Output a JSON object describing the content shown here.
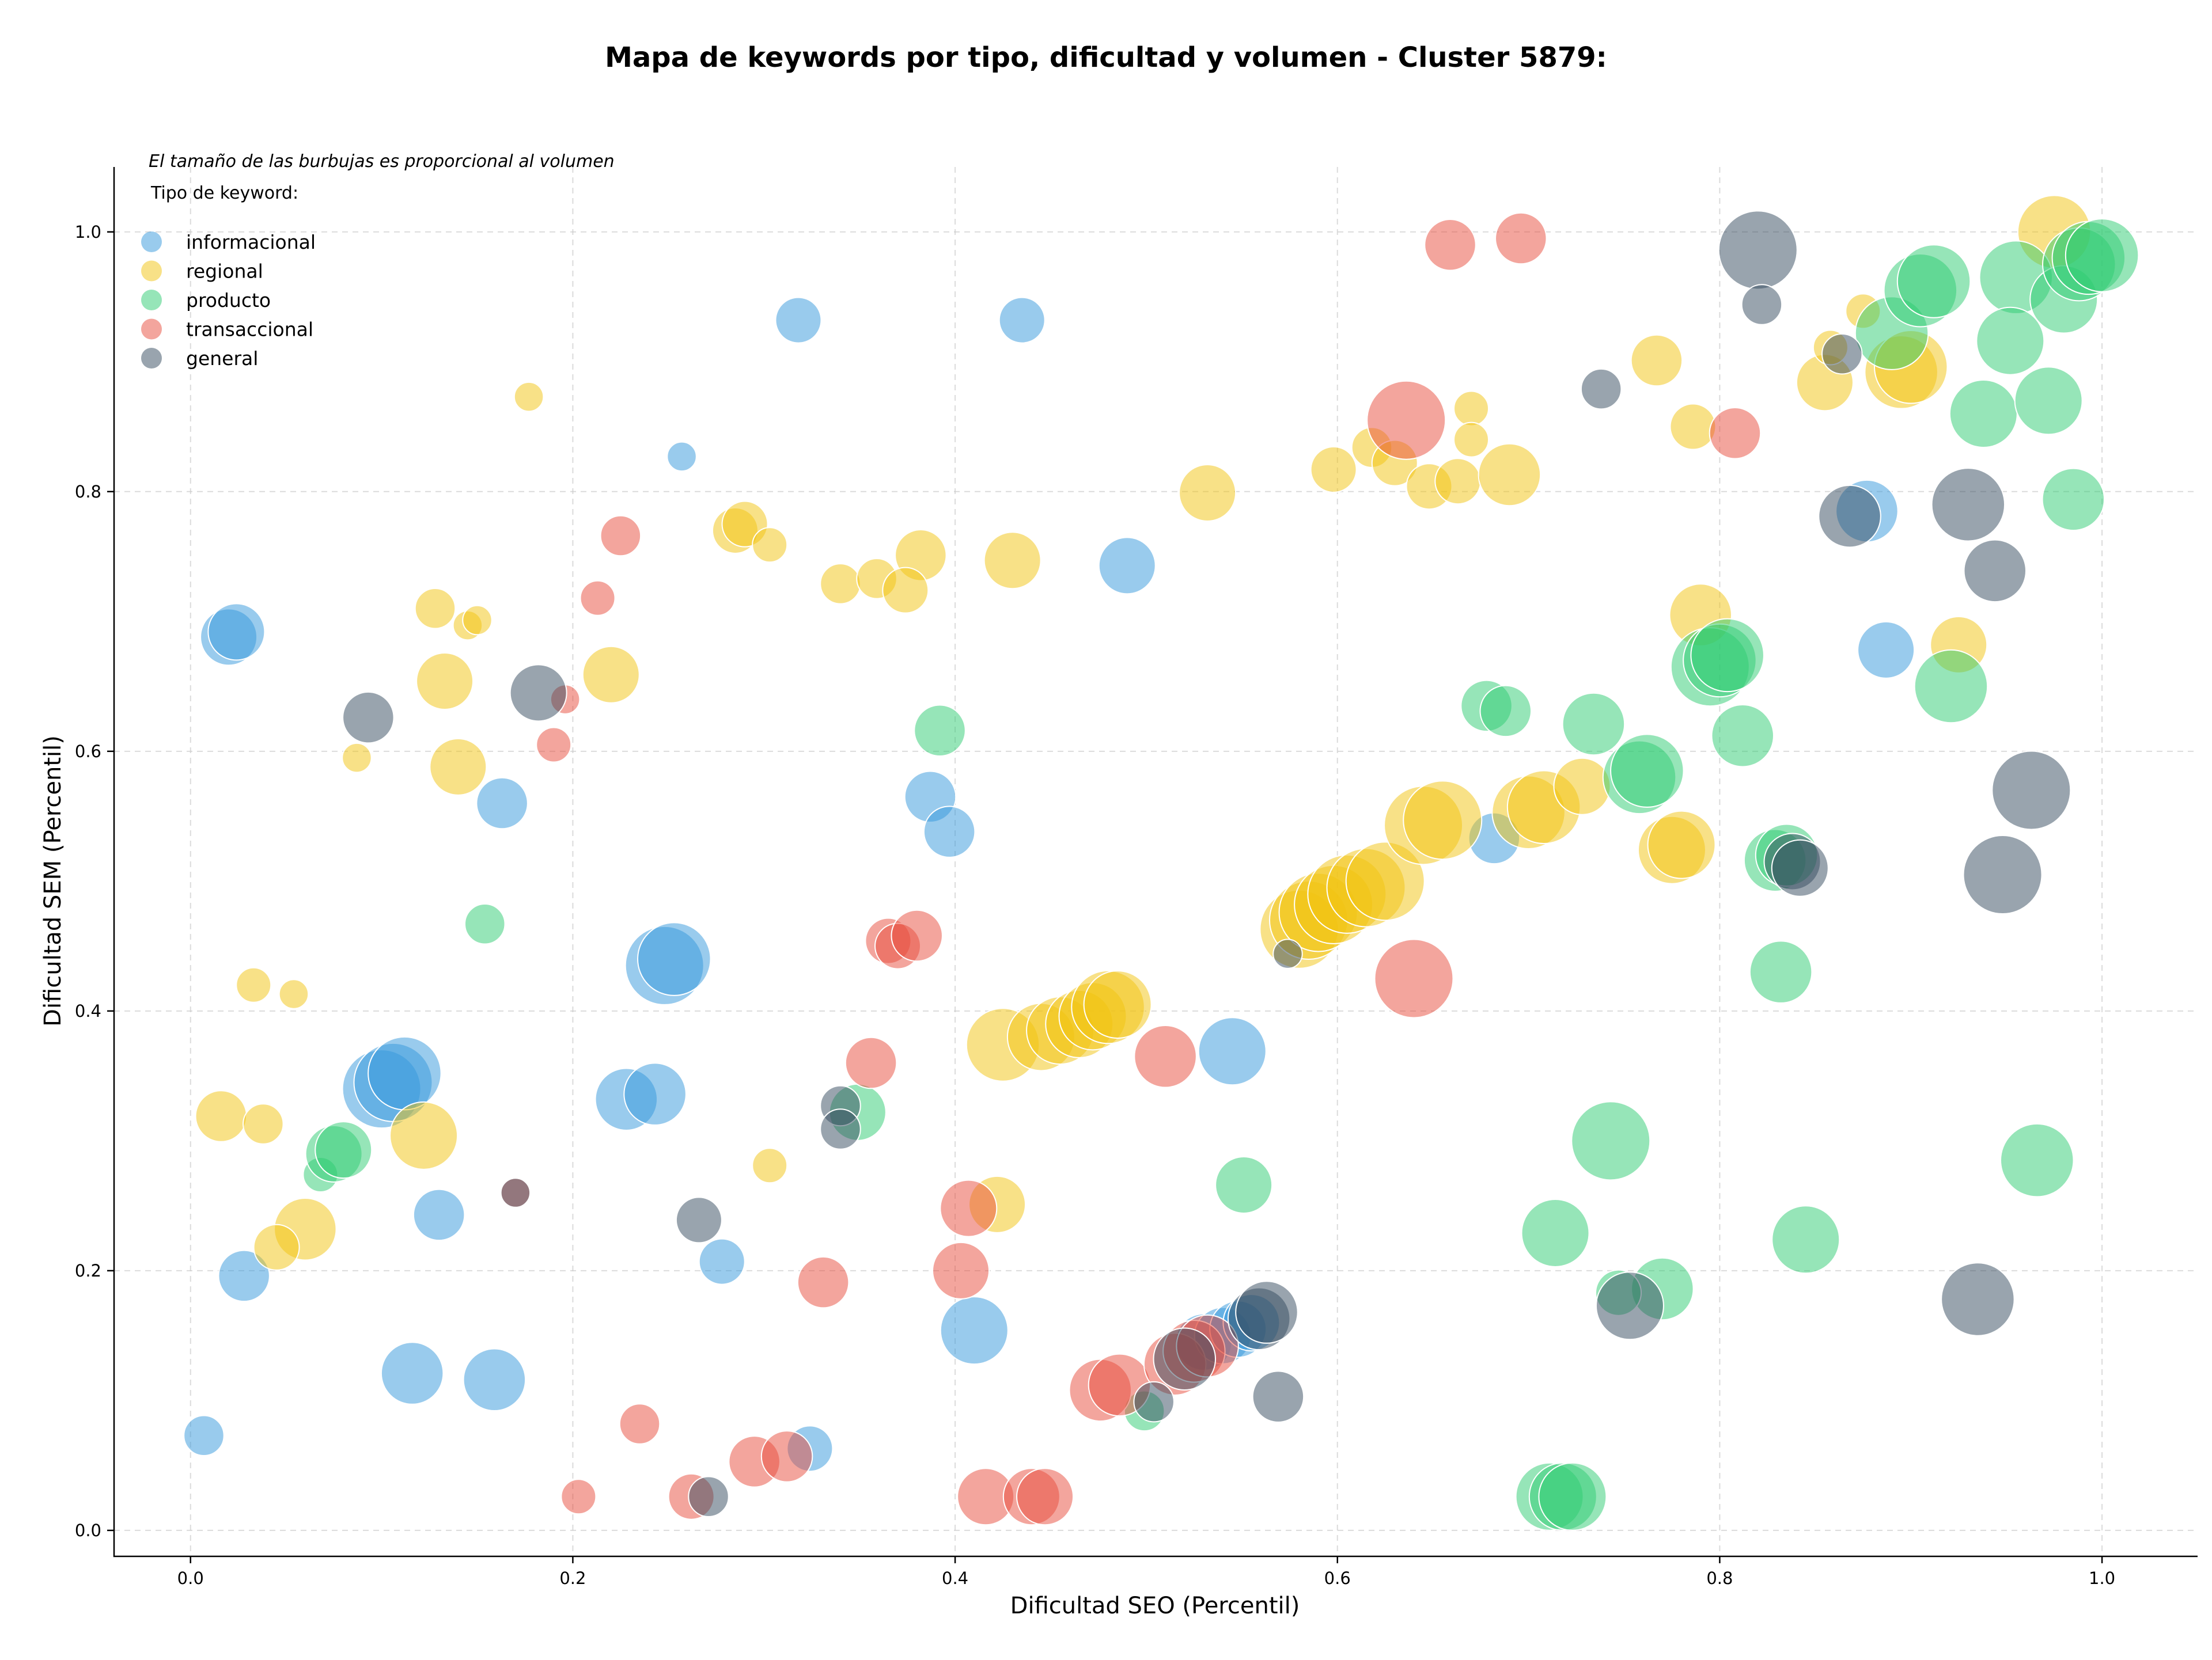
{
  "chart_data": {
    "type": "scatter",
    "title": "Mapa de keywords por tipo, dificultad y volumen - Cluster 5879:",
    "xlabel": "Dificultad SEO (Percentil)",
    "ylabel": "Dificultad SEM (Percentil)",
    "note": "El tamaño de las burbujas es proporcional al volumen",
    "legend_title": "Tipo de keyword:",
    "legend_position": "top-left",
    "xlim": [
      -0.04,
      1.05
    ],
    "ylim": [
      -0.02,
      1.05
    ],
    "xticks": [
      0.0,
      0.2,
      0.4,
      0.6,
      0.8,
      1.0
    ],
    "yticks": [
      0.0,
      0.2,
      0.4,
      0.6,
      0.8,
      1.0
    ],
    "xtick_labels": [
      "0.0",
      "0.2",
      "0.4",
      "0.6",
      "0.8",
      "1.0"
    ],
    "ytick_labels": [
      "0.0",
      "0.2",
      "0.4",
      "0.6",
      "0.8",
      "1.0"
    ],
    "grid": true,
    "series": [
      {
        "name": "informacional",
        "color": "#3498db",
        "points": [
          [
            0.318,
            0.932,
            3
          ],
          [
            0.435,
            0.932,
            3
          ],
          [
            0.257,
            0.827,
            1.5
          ],
          [
            0.02,
            0.688,
            4
          ],
          [
            0.024,
            0.692,
            4
          ],
          [
            0.49,
            0.743,
            4
          ],
          [
            0.163,
            0.56,
            3.5
          ],
          [
            0.387,
            0.565,
            3.5
          ],
          [
            0.397,
            0.538,
            3.5
          ],
          [
            0.248,
            0.435,
            6
          ],
          [
            0.253,
            0.44,
            5.5
          ],
          [
            0.1,
            0.34,
            6
          ],
          [
            0.106,
            0.345,
            6
          ],
          [
            0.112,
            0.352,
            5.5
          ],
          [
            0.228,
            0.332,
            4.5
          ],
          [
            0.243,
            0.336,
            4.5
          ],
          [
            0.545,
            0.369,
            5
          ],
          [
            0.13,
            0.243,
            3.5
          ],
          [
            0.028,
            0.196,
            3.5
          ],
          [
            0.278,
            0.207,
            3
          ],
          [
            0.41,
            0.154,
            5
          ],
          [
            0.116,
            0.121,
            4.5
          ],
          [
            0.159,
            0.116,
            4.5
          ],
          [
            0.007,
            0.073,
            2.5
          ],
          [
            0.324,
            0.063,
            3
          ],
          [
            0.682,
            0.533,
            3.5
          ],
          [
            0.877,
            0.785,
            4.5
          ],
          [
            0.887,
            0.678,
            4
          ],
          [
            0.53,
            0.145,
            4
          ],
          [
            0.54,
            0.15,
            4
          ],
          [
            0.548,
            0.155,
            4
          ],
          [
            0.555,
            0.16,
            4
          ]
        ]
      },
      {
        "name": "regional",
        "color": "#f1c40f",
        "points": [
          [
            0.177,
            0.873,
            1.5
          ],
          [
            0.285,
            0.77,
            3
          ],
          [
            0.29,
            0.775,
            3
          ],
          [
            0.303,
            0.759,
            2
          ],
          [
            0.382,
            0.751,
            3.5
          ],
          [
            0.34,
            0.729,
            2.5
          ],
          [
            0.359,
            0.733,
            2.5
          ],
          [
            0.374,
            0.724,
            3
          ],
          [
            0.43,
            0.747,
            4
          ],
          [
            0.532,
            0.799,
            4
          ],
          [
            0.598,
            0.817,
            3
          ],
          [
            0.618,
            0.834,
            2.5
          ],
          [
            0.63,
            0.822,
            3
          ],
          [
            0.648,
            0.804,
            3
          ],
          [
            0.663,
            0.808,
            3
          ],
          [
            0.67,
            0.864,
            2
          ],
          [
            0.67,
            0.84,
            2
          ],
          [
            0.69,
            0.813,
            4.5
          ],
          [
            0.767,
            0.901,
            3.5
          ],
          [
            0.786,
            0.85,
            3
          ],
          [
            0.128,
            0.71,
            2.5
          ],
          [
            0.145,
            0.697,
            1.5
          ],
          [
            0.15,
            0.701,
            1.5
          ],
          [
            0.133,
            0.654,
            4
          ],
          [
            0.22,
            0.659,
            4
          ],
          [
            0.087,
            0.595,
            1.5
          ],
          [
            0.14,
            0.588,
            4
          ],
          [
            0.033,
            0.42,
            2
          ],
          [
            0.054,
            0.413,
            1.5
          ],
          [
            0.016,
            0.319,
            3.5
          ],
          [
            0.038,
            0.313,
            2.5
          ],
          [
            0.06,
            0.232,
            4.5
          ],
          [
            0.045,
            0.218,
            3
          ],
          [
            0.122,
            0.304,
            5
          ],
          [
            0.303,
            0.281,
            2
          ],
          [
            0.422,
            0.251,
            4
          ],
          [
            0.425,
            0.374,
            5.5
          ],
          [
            0.445,
            0.38,
            5
          ],
          [
            0.455,
            0.385,
            5
          ],
          [
            0.465,
            0.39,
            5
          ],
          [
            0.472,
            0.396,
            5
          ],
          [
            0.48,
            0.403,
            5.5
          ],
          [
            0.485,
            0.405,
            5
          ],
          [
            0.58,
            0.463,
            6
          ],
          [
            0.585,
            0.47,
            6
          ],
          [
            0.59,
            0.476,
            6
          ],
          [
            0.598,
            0.482,
            6
          ],
          [
            0.605,
            0.49,
            6
          ],
          [
            0.615,
            0.495,
            6
          ],
          [
            0.625,
            0.5,
            6
          ],
          [
            0.645,
            0.543,
            6
          ],
          [
            0.655,
            0.547,
            6
          ],
          [
            0.7,
            0.553,
            5.5
          ],
          [
            0.708,
            0.557,
            5.5
          ],
          [
            0.728,
            0.573,
            4
          ],
          [
            0.775,
            0.524,
            5
          ],
          [
            0.78,
            0.528,
            5
          ],
          [
            0.79,
            0.705,
            4.5
          ],
          [
            0.925,
            0.682,
            4
          ],
          [
            0.855,
            0.884,
            4
          ],
          [
            0.858,
            0.911,
            2
          ],
          [
            0.875,
            0.939,
            2
          ],
          [
            0.895,
            0.892,
            5.5
          ],
          [
            0.9,
            0.896,
            5.5
          ],
          [
            0.975,
            1.0,
            5.5
          ]
        ]
      },
      {
        "name": "producto",
        "color": "#2ecc71",
        "points": [
          [
            0.392,
            0.616,
            3.5
          ],
          [
            0.154,
            0.467,
            2.5
          ],
          [
            0.068,
            0.274,
            2
          ],
          [
            0.075,
            0.29,
            4
          ],
          [
            0.08,
            0.293,
            4
          ],
          [
            0.349,
            0.322,
            4
          ],
          [
            0.551,
            0.266,
            4
          ],
          [
            0.499,
            0.092,
            2.5
          ],
          [
            0.678,
            0.635,
            3.5
          ],
          [
            0.688,
            0.631,
            3.5
          ],
          [
            0.734,
            0.621,
            4.5
          ],
          [
            0.758,
            0.58,
            5.5
          ],
          [
            0.762,
            0.585,
            5.5
          ],
          [
            0.795,
            0.665,
            6
          ],
          [
            0.8,
            0.67,
            5.5
          ],
          [
            0.804,
            0.674,
            5.5
          ],
          [
            0.812,
            0.612,
            4.5
          ],
          [
            0.829,
            0.516,
            4.5
          ],
          [
            0.835,
            0.52,
            4.5
          ],
          [
            0.832,
            0.43,
            4.5
          ],
          [
            0.743,
            0.3,
            6
          ],
          [
            0.714,
            0.229,
            5
          ],
          [
            0.77,
            0.186,
            4.5
          ],
          [
            0.747,
            0.183,
            3
          ],
          [
            0.845,
            0.224,
            5
          ],
          [
            0.711,
            0.026,
            5
          ],
          [
            0.718,
            0.026,
            5
          ],
          [
            0.723,
            0.026,
            5
          ],
          [
            0.89,
            0.922,
            5.5
          ],
          [
            0.905,
            0.955,
            5.5
          ],
          [
            0.912,
            0.962,
            5.5
          ],
          [
            0.955,
            0.965,
            5.5
          ],
          [
            0.952,
            0.916,
            5
          ],
          [
            0.938,
            0.86,
            5
          ],
          [
            0.972,
            0.87,
            5
          ],
          [
            0.985,
            0.794,
            4.5
          ],
          [
            0.98,
            0.948,
            5
          ],
          [
            0.988,
            0.975,
            5.5
          ],
          [
            0.993,
            0.98,
            5.5
          ],
          [
            1.0,
            0.982,
            5.5
          ],
          [
            0.921,
            0.65,
            5.5
          ],
          [
            0.966,
            0.285,
            5.5
          ]
        ]
      },
      {
        "name": "transaccional",
        "color": "#e74c3c",
        "points": [
          [
            0.659,
            0.99,
            3.5
          ],
          [
            0.696,
            0.995,
            3.5
          ],
          [
            0.636,
            0.855,
            6
          ],
          [
            0.808,
            0.845,
            3.5
          ],
          [
            0.225,
            0.766,
            2.5
          ],
          [
            0.213,
            0.718,
            2
          ],
          [
            0.196,
            0.64,
            1.5
          ],
          [
            0.19,
            0.605,
            2
          ],
          [
            0.365,
            0.454,
            3
          ],
          [
            0.37,
            0.45,
            3
          ],
          [
            0.38,
            0.458,
            3.5
          ],
          [
            0.356,
            0.36,
            3.5
          ],
          [
            0.64,
            0.425,
            6
          ],
          [
            0.51,
            0.365,
            4.5
          ],
          [
            0.407,
            0.248,
            4
          ],
          [
            0.403,
            0.2,
            4
          ],
          [
            0.331,
            0.191,
            3.5
          ],
          [
            0.235,
            0.082,
            2.5
          ],
          [
            0.203,
            0.026,
            2
          ],
          [
            0.262,
            0.026,
            3
          ],
          [
            0.295,
            0.053,
            3.5
          ],
          [
            0.312,
            0.057,
            3.5
          ],
          [
            0.416,
            0.026,
            4
          ],
          [
            0.44,
            0.026,
            4
          ],
          [
            0.447,
            0.026,
            4
          ],
          [
            0.476,
            0.108,
            4.5
          ],
          [
            0.486,
            0.112,
            4.5
          ],
          [
            0.515,
            0.128,
            4.5
          ],
          [
            0.525,
            0.138,
            4.5
          ],
          [
            0.532,
            0.142,
            4.5
          ],
          [
            0.17,
            0.26,
            1.5
          ]
        ]
      },
      {
        "name": "general",
        "color": "#34495e",
        "points": [
          [
            0.82,
            0.986,
            6
          ],
          [
            0.822,
            0.944,
            2.5
          ],
          [
            0.738,
            0.879,
            2.5
          ],
          [
            0.864,
            0.906,
            2.5
          ],
          [
            0.868,
            0.781,
            4.5
          ],
          [
            0.93,
            0.79,
            5.5
          ],
          [
            0.944,
            0.739,
            4.5
          ],
          [
            0.963,
            0.57,
            6
          ],
          [
            0.948,
            0.505,
            6
          ],
          [
            0.838,
            0.515,
            4
          ],
          [
            0.842,
            0.51,
            4
          ],
          [
            0.093,
            0.626,
            3.5
          ],
          [
            0.182,
            0.645,
            4
          ],
          [
            0.574,
            0.444,
            1.5
          ],
          [
            0.34,
            0.327,
            2.5
          ],
          [
            0.34,
            0.309,
            2.5
          ],
          [
            0.266,
            0.239,
            3
          ],
          [
            0.271,
            0.026,
            2.5
          ],
          [
            0.504,
            0.099,
            2.5
          ],
          [
            0.569,
            0.103,
            3.5
          ],
          [
            0.559,
            0.163,
            4.5
          ],
          [
            0.563,
            0.168,
            4.5
          ],
          [
            0.52,
            0.132,
            4.5
          ],
          [
            0.753,
            0.173,
            5
          ],
          [
            0.935,
            0.178,
            5.5
          ],
          [
            0.17,
            0.26,
            1.5
          ]
        ]
      }
    ]
  }
}
